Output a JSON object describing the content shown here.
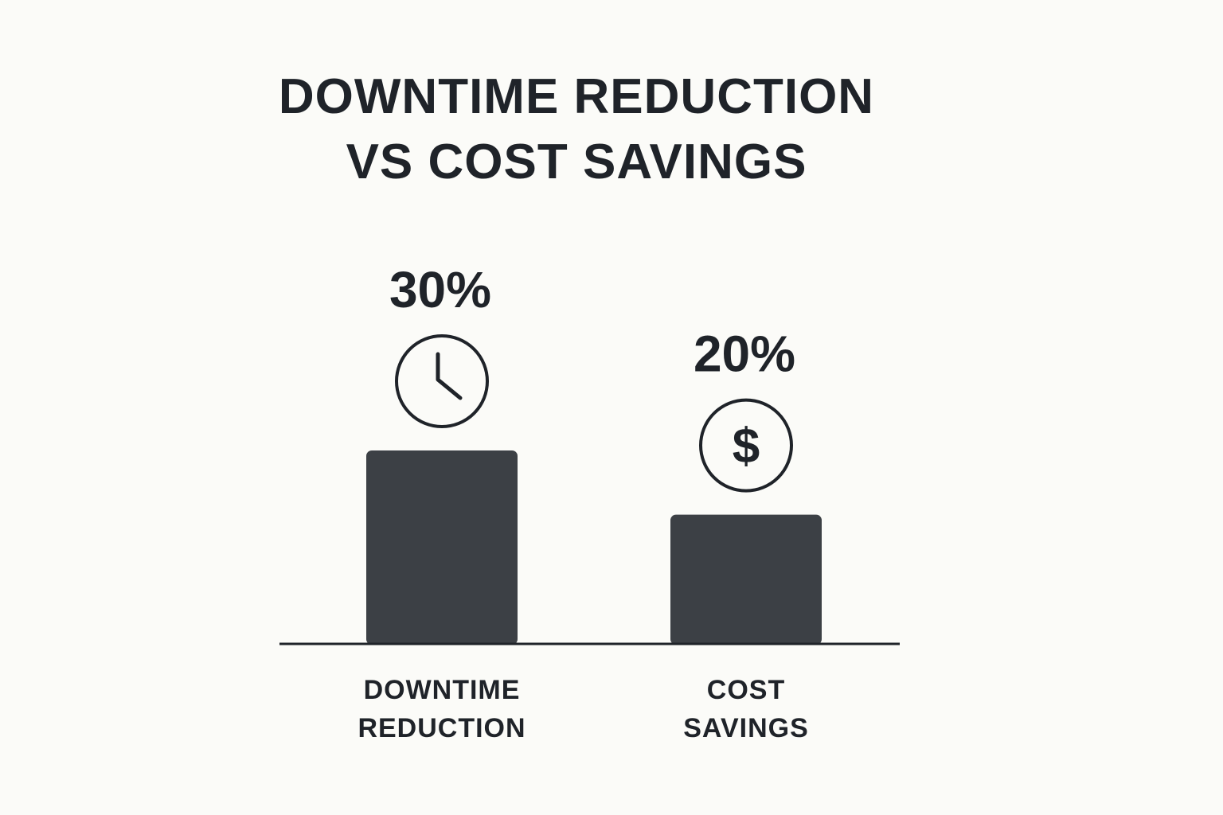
{
  "chart_data": {
    "type": "bar",
    "title_lines": [
      "DOWNTIME REDUCTION",
      "VS COST SAVINGS"
    ],
    "categories": [
      {
        "label_lines": [
          "DOWNTIME",
          "REDUCTION"
        ],
        "value": 30,
        "value_label": "30%",
        "icon": "clock-icon"
      },
      {
        "label_lines": [
          "COST",
          "SAVINGS"
        ],
        "value": 20,
        "value_label": "20%",
        "icon": "dollar-icon"
      }
    ],
    "icon_glyphs": {
      "dollar-icon": "$"
    },
    "unit": "%",
    "bar_color": "#3c4045",
    "text_color": "#1f2329",
    "background_color": "#fbfbf8"
  }
}
